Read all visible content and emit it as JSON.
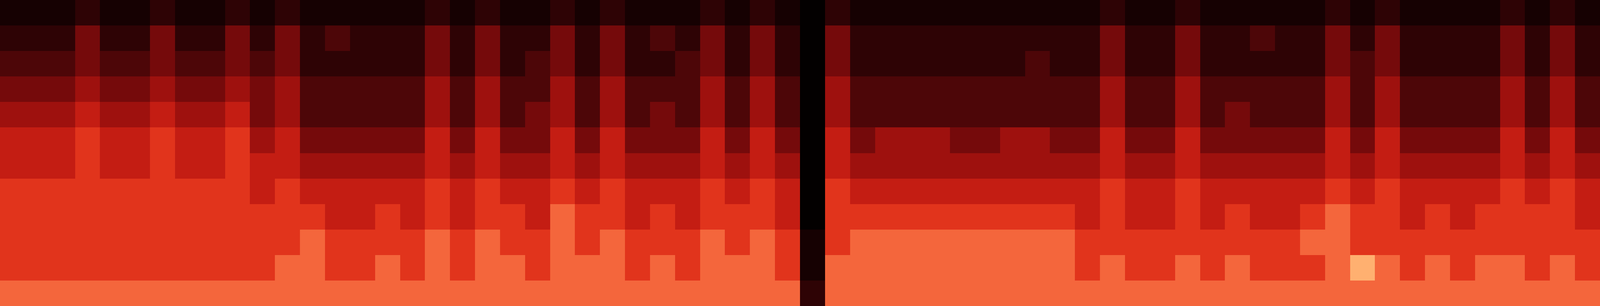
{
  "chart_data": {
    "type": "heatmap",
    "tick_labels": false,
    "cells": [
      [
        1,
        1,
        1,
        2,
        1,
        1,
        2,
        1,
        1,
        2,
        1,
        2,
        1,
        1,
        1,
        1,
        1,
        2,
        1,
        2,
        1,
        1,
        2,
        1,
        2,
        1,
        1,
        1,
        2,
        1,
        2,
        1,
        0,
        2,
        1,
        1,
        1,
        1,
        1,
        1,
        1,
        1,
        1,
        1,
        2,
        1,
        1,
        2,
        1,
        1,
        1,
        1,
        1,
        2,
        1,
        2,
        1,
        1,
        1,
        1,
        2,
        1,
        2,
        1
      ],
      [
        2,
        2,
        2,
        4,
        2,
        2,
        4,
        2,
        2,
        4,
        2,
        4,
        2,
        3,
        2,
        2,
        2,
        4,
        2,
        4,
        2,
        2,
        4,
        2,
        4,
        2,
        3,
        2,
        4,
        2,
        4,
        2,
        0,
        4,
        2,
        2,
        2,
        2,
        2,
        2,
        2,
        2,
        2,
        2,
        4,
        2,
        2,
        4,
        2,
        2,
        3,
        2,
        2,
        4,
        2,
        4,
        2,
        2,
        2,
        2,
        4,
        2,
        4,
        2
      ],
      [
        3,
        3,
        3,
        4,
        3,
        3,
        4,
        3,
        3,
        4,
        3,
        4,
        2,
        2,
        2,
        2,
        2,
        4,
        2,
        4,
        2,
        3,
        4,
        2,
        4,
        2,
        2,
        3,
        4,
        2,
        4,
        2,
        0,
        4,
        2,
        2,
        2,
        2,
        2,
        2,
        2,
        3,
        2,
        2,
        4,
        2,
        2,
        4,
        2,
        2,
        2,
        2,
        2,
        4,
        3,
        4,
        2,
        2,
        2,
        2,
        4,
        2,
        4,
        2
      ],
      [
        4,
        4,
        4,
        5,
        4,
        4,
        5,
        4,
        4,
        5,
        4,
        5,
        3,
        3,
        3,
        3,
        3,
        5,
        3,
        5,
        3,
        3,
        5,
        3,
        5,
        3,
        3,
        3,
        5,
        3,
        5,
        3,
        0,
        5,
        3,
        3,
        3,
        3,
        3,
        3,
        3,
        3,
        3,
        3,
        5,
        3,
        3,
        5,
        3,
        3,
        3,
        3,
        3,
        5,
        3,
        5,
        3,
        3,
        3,
        3,
        5,
        3,
        5,
        3
      ],
      [
        5,
        5,
        5,
        6,
        5,
        5,
        6,
        5,
        5,
        6,
        4,
        5,
        3,
        3,
        3,
        3,
        3,
        5,
        3,
        5,
        3,
        4,
        5,
        3,
        5,
        3,
        4,
        3,
        5,
        3,
        5,
        3,
        0,
        5,
        3,
        3,
        3,
        3,
        3,
        3,
        3,
        3,
        3,
        3,
        5,
        3,
        3,
        5,
        3,
        4,
        3,
        3,
        3,
        5,
        3,
        5,
        3,
        3,
        3,
        3,
        5,
        3,
        5,
        3
      ],
      [
        6,
        6,
        6,
        7,
        6,
        6,
        7,
        6,
        6,
        7,
        5,
        6,
        4,
        4,
        4,
        4,
        4,
        6,
        4,
        6,
        4,
        4,
        6,
        4,
        6,
        4,
        4,
        4,
        6,
        4,
        6,
        4,
        0,
        6,
        4,
        5,
        5,
        5,
        4,
        4,
        5,
        5,
        4,
        4,
        6,
        4,
        4,
        6,
        4,
        4,
        4,
        4,
        4,
        6,
        4,
        6,
        4,
        4,
        4,
        4,
        6,
        4,
        6,
        4
      ],
      [
        6,
        6,
        6,
        7,
        6,
        6,
        7,
        6,
        6,
        7,
        6,
        6,
        5,
        5,
        5,
        5,
        5,
        6,
        5,
        6,
        5,
        5,
        6,
        5,
        6,
        5,
        5,
        5,
        6,
        5,
        6,
        5,
        0,
        6,
        5,
        5,
        5,
        5,
        5,
        5,
        5,
        5,
        5,
        5,
        6,
        5,
        5,
        6,
        5,
        5,
        5,
        5,
        5,
        6,
        5,
        6,
        5,
        5,
        5,
        5,
        6,
        5,
        6,
        5
      ],
      [
        7,
        7,
        7,
        7,
        7,
        7,
        7,
        7,
        7,
        7,
        6,
        7,
        6,
        6,
        6,
        6,
        6,
        7,
        6,
        7,
        6,
        6,
        7,
        6,
        7,
        6,
        6,
        6,
        7,
        6,
        7,
        6,
        0,
        7,
        6,
        6,
        6,
        6,
        6,
        6,
        6,
        6,
        6,
        6,
        7,
        6,
        6,
        7,
        6,
        6,
        6,
        6,
        6,
        7,
        6,
        7,
        6,
        6,
        6,
        6,
        7,
        6,
        7,
        6
      ],
      [
        7,
        7,
        7,
        7,
        7,
        7,
        7,
        7,
        7,
        7,
        7,
        7,
        7,
        6,
        6,
        7,
        6,
        7,
        6,
        7,
        7,
        6,
        8,
        7,
        7,
        6,
        7,
        6,
        7,
        7,
        7,
        6,
        0,
        7,
        7,
        7,
        7,
        7,
        7,
        7,
        7,
        7,
        7,
        6,
        7,
        6,
        6,
        7,
        6,
        7,
        6,
        6,
        7,
        8,
        7,
        7,
        6,
        7,
        6,
        7,
        7,
        7,
        7,
        6
      ],
      [
        7,
        7,
        7,
        7,
        7,
        7,
        7,
        7,
        7,
        7,
        7,
        7,
        8,
        7,
        7,
        7,
        7,
        8,
        7,
        8,
        7,
        7,
        8,
        7,
        8,
        7,
        7,
        7,
        8,
        7,
        8,
        7,
        1,
        7,
        8,
        8,
        8,
        8,
        8,
        8,
        8,
        8,
        8,
        7,
        7,
        7,
        7,
        7,
        7,
        7,
        7,
        7,
        8,
        8,
        7,
        7,
        7,
        7,
        7,
        7,
        7,
        7,
        7,
        7
      ],
      [
        7,
        7,
        7,
        7,
        7,
        7,
        7,
        7,
        7,
        7,
        7,
        8,
        8,
        7,
        7,
        8,
        7,
        8,
        7,
        8,
        8,
        7,
        8,
        8,
        8,
        7,
        8,
        7,
        8,
        8,
        8,
        7,
        1,
        8,
        8,
        8,
        8,
        8,
        8,
        8,
        8,
        8,
        8,
        7,
        8,
        7,
        7,
        8,
        7,
        8,
        7,
        7,
        7,
        8,
        9,
        8,
        7,
        8,
        7,
        8,
        8,
        7,
        8,
        7
      ],
      [
        8,
        8,
        8,
        8,
        8,
        8,
        8,
        8,
        8,
        8,
        8,
        8,
        8,
        8,
        8,
        8,
        8,
        8,
        8,
        8,
        8,
        8,
        8,
        8,
        8,
        8,
        8,
        8,
        8,
        8,
        8,
        8,
        2,
        8,
        8,
        8,
        8,
        8,
        8,
        8,
        8,
        8,
        8,
        8,
        8,
        8,
        8,
        8,
        8,
        8,
        8,
        8,
        8,
        8,
        8,
        8,
        8,
        8,
        8,
        8,
        8,
        8,
        8,
        8
      ]
    ]
  }
}
